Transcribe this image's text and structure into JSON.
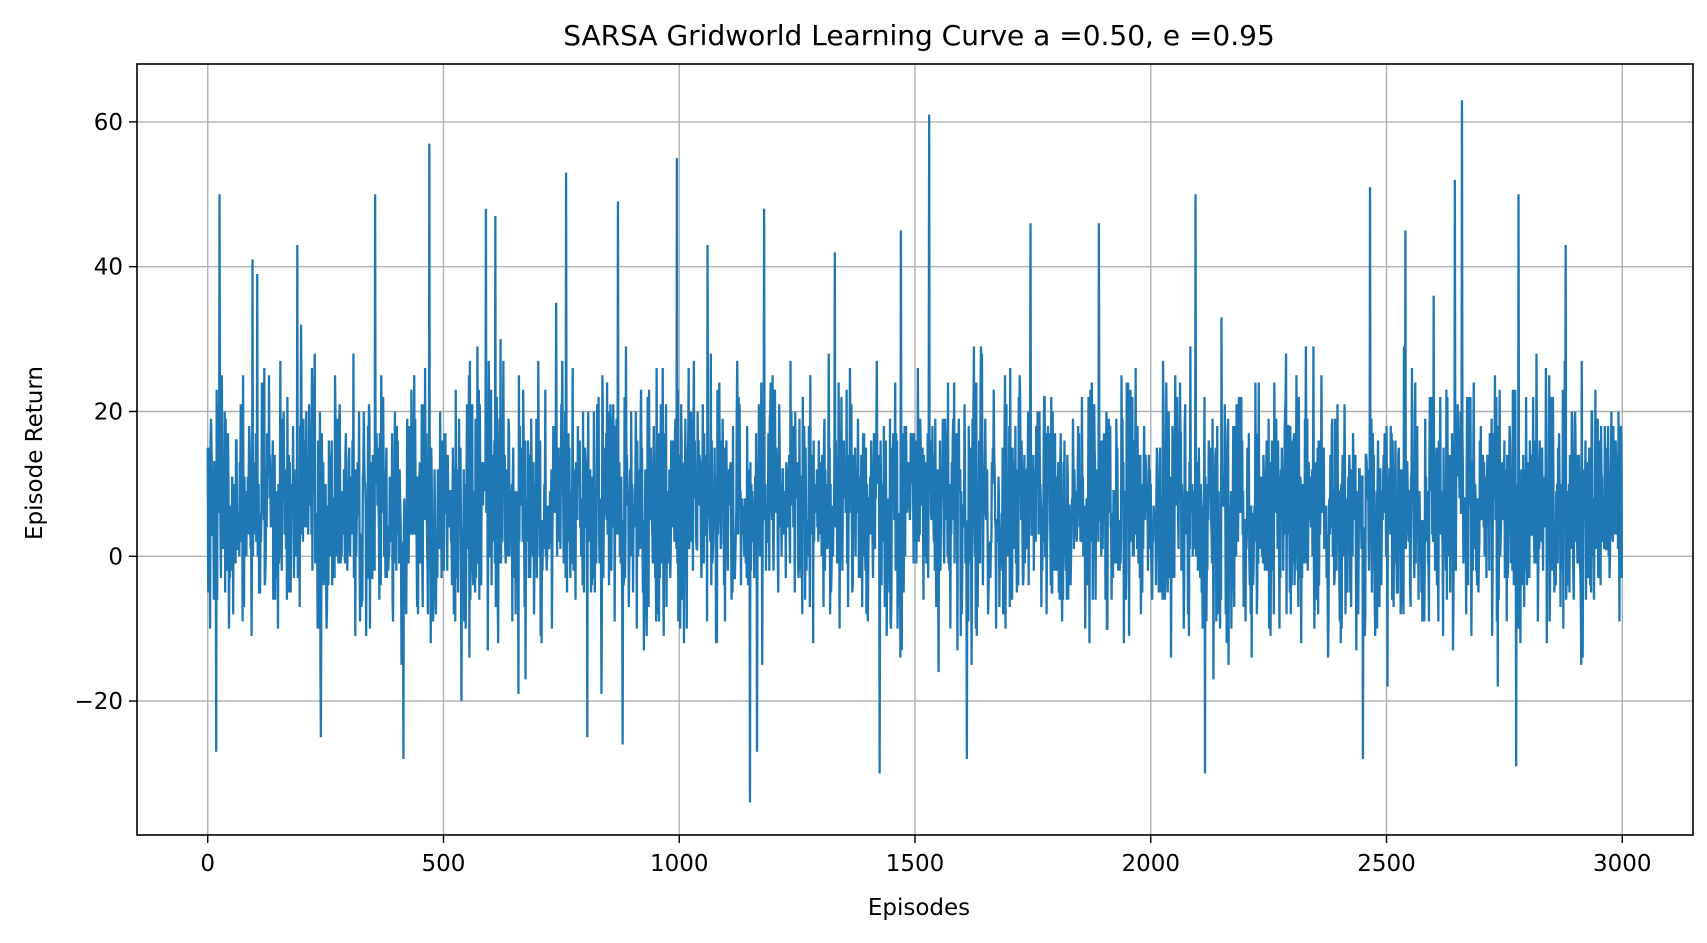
{
  "chart_data": {
    "type": "line",
    "title": "SARSA Gridworld Learning Curve a =0.50, e =0.95",
    "xlabel": "Episodes",
    "ylabel": "Episode Return",
    "xlim": [
      -150,
      3150
    ],
    "ylim": [
      -38.5,
      68
    ],
    "xticks": [
      0,
      500,
      1000,
      1500,
      2000,
      2500,
      3000
    ],
    "xtick_labels": [
      "0",
      "500",
      "1000",
      "1500",
      "2000",
      "2500",
      "3000"
    ],
    "yticks": [
      -20,
      0,
      20,
      40,
      60
    ],
    "ytick_labels": [
      "−20",
      "0",
      "20",
      "40",
      "60"
    ],
    "grid": true,
    "legend": "none",
    "series": [
      {
        "color": "#1f77b4",
        "episodes": 3000,
        "summary": {
          "mean": 7,
          "min": -34,
          "max": 63
        },
        "peaks": [
          {
            "x": 18,
            "y": -27
          },
          {
            "x": 25,
            "y": 50
          },
          {
            "x": 95,
            "y": 41
          },
          {
            "x": 105,
            "y": 39
          },
          {
            "x": 190,
            "y": 43
          },
          {
            "x": 240,
            "y": -25
          },
          {
            "x": 355,
            "y": 50
          },
          {
            "x": 415,
            "y": -28
          },
          {
            "x": 470,
            "y": 57
          },
          {
            "x": 590,
            "y": 48
          },
          {
            "x": 610,
            "y": 47
          },
          {
            "x": 760,
            "y": 53
          },
          {
            "x": 805,
            "y": -25
          },
          {
            "x": 870,
            "y": 49
          },
          {
            "x": 880,
            "y": -26
          },
          {
            "x": 995,
            "y": 55
          },
          {
            "x": 1060,
            "y": 43
          },
          {
            "x": 1150,
            "y": -34
          },
          {
            "x": 1165,
            "y": -27
          },
          {
            "x": 1180,
            "y": 48
          },
          {
            "x": 1330,
            "y": 42
          },
          {
            "x": 1425,
            "y": -30
          },
          {
            "x": 1470,
            "y": 45
          },
          {
            "x": 1530,
            "y": 61
          },
          {
            "x": 1610,
            "y": -28
          },
          {
            "x": 1745,
            "y": 46
          },
          {
            "x": 1890,
            "y": 46
          },
          {
            "x": 2095,
            "y": 50
          },
          {
            "x": 2115,
            "y": -30
          },
          {
            "x": 2450,
            "y": -28
          },
          {
            "x": 2465,
            "y": 51
          },
          {
            "x": 2540,
            "y": 45
          },
          {
            "x": 2645,
            "y": 52
          },
          {
            "x": 2660,
            "y": 63
          },
          {
            "x": 2775,
            "y": -29
          },
          {
            "x": 2780,
            "y": 50
          },
          {
            "x": 2880,
            "y": 43
          }
        ]
      }
    ]
  }
}
